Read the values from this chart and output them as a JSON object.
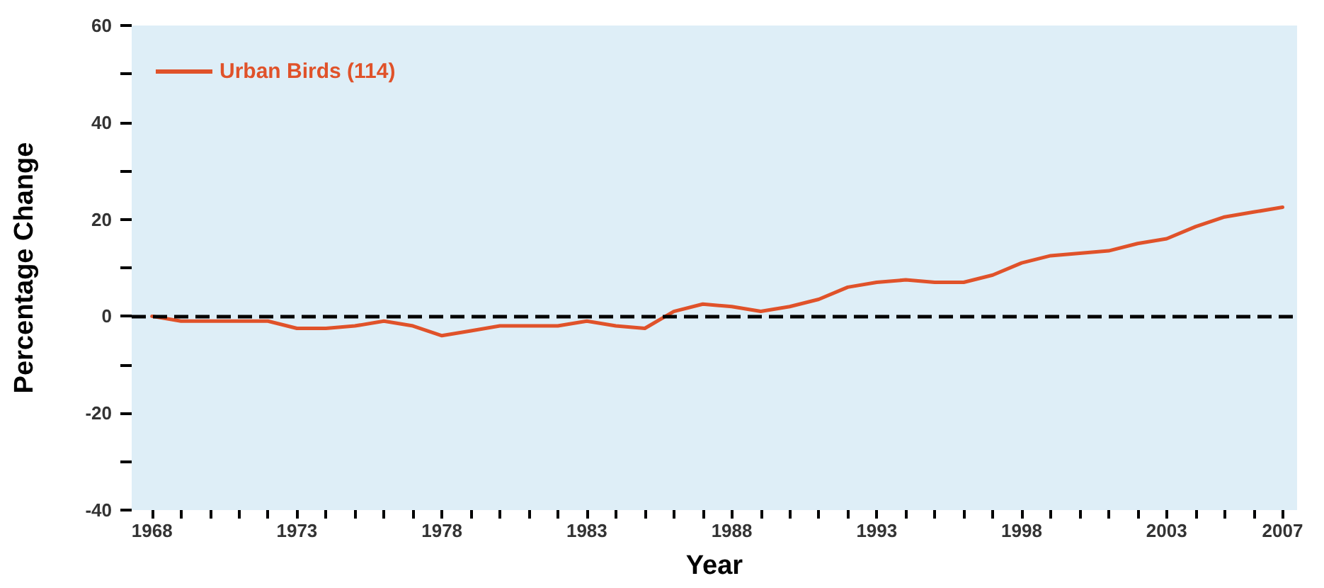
{
  "chart_data": {
    "type": "line",
    "xlabel": "Year",
    "ylabel": "Percentage Change",
    "x": [
      1968,
      1969,
      1970,
      1971,
      1972,
      1973,
      1974,
      1975,
      1976,
      1977,
      1978,
      1979,
      1980,
      1981,
      1982,
      1983,
      1984,
      1985,
      1986,
      1987,
      1988,
      1989,
      1990,
      1991,
      1992,
      1993,
      1994,
      1995,
      1996,
      1997,
      1998,
      1999,
      2000,
      2001,
      2002,
      2003,
      2004,
      2005,
      2006,
      2007
    ],
    "series": [
      {
        "name": "Urban Birds (114)",
        "color": "#e0522a",
        "values": [
          0,
          -1,
          -1,
          -1,
          -1,
          -2.5,
          -2.5,
          -2,
          -1,
          -2,
          -4,
          -3,
          -2,
          -2,
          -2,
          -1,
          -2,
          -2.5,
          1,
          2.5,
          2,
          1,
          2,
          3.5,
          6,
          7,
          7.5,
          7,
          7,
          8.5,
          11,
          12.5,
          13,
          13.5,
          15,
          16,
          18.5,
          20.5,
          21.5,
          22.5
        ]
      }
    ],
    "xlim": [
      1967.3,
      2007.5
    ],
    "xticks": [
      1968,
      {
        "value": 1969,
        "label": null
      },
      {
        "value": 1970,
        "label": null
      },
      {
        "value": 1971,
        "label": null
      },
      {
        "value": 1972,
        "label": null
      },
      1973,
      {
        "value": 1974,
        "label": null
      },
      {
        "value": 1975,
        "label": null
      },
      {
        "value": 1976,
        "label": null
      },
      {
        "value": 1977,
        "label": null
      },
      1978,
      {
        "value": 1979,
        "label": null
      },
      {
        "value": 1980,
        "label": null
      },
      {
        "value": 1981,
        "label": null
      },
      {
        "value": 1982,
        "label": null
      },
      1983,
      {
        "value": 1984,
        "label": null
      },
      {
        "value": 1985,
        "label": null
      },
      {
        "value": 1986,
        "label": null
      },
      {
        "value": 1987,
        "label": null
      },
      1988,
      {
        "value": 1989,
        "label": null
      },
      {
        "value": 1990,
        "label": null
      },
      {
        "value": 1991,
        "label": null
      },
      {
        "value": 1992,
        "label": null
      },
      1993,
      {
        "value": 1994,
        "label": null
      },
      {
        "value": 1995,
        "label": null
      },
      {
        "value": 1996,
        "label": null
      },
      {
        "value": 1997,
        "label": null
      },
      1998,
      {
        "value": 1999,
        "label": null
      },
      {
        "value": 2000,
        "label": null
      },
      {
        "value": 2001,
        "label": null
      },
      {
        "value": 2002,
        "label": null
      },
      2003,
      {
        "value": 2004,
        "label": null
      },
      {
        "value": 2005,
        "label": null
      },
      {
        "value": 2006,
        "label": null
      },
      2007
    ],
    "ylim": [
      -40,
      60
    ],
    "yticks": [
      -40,
      {
        "value": -30,
        "label": null
      },
      -20,
      {
        "value": -10,
        "label": null
      },
      0,
      {
        "value": 10,
        "label": null
      },
      20,
      {
        "value": 30,
        "label": null
      },
      40,
      {
        "value": 50,
        "label": null
      },
      60
    ],
    "ref_lines": [
      {
        "axis": "y",
        "value": 0,
        "color": "#000000",
        "line_style": "dashed"
      }
    ],
    "grid": false,
    "legend": "top left",
    "marker": "none",
    "line_style": "solid"
  }
}
